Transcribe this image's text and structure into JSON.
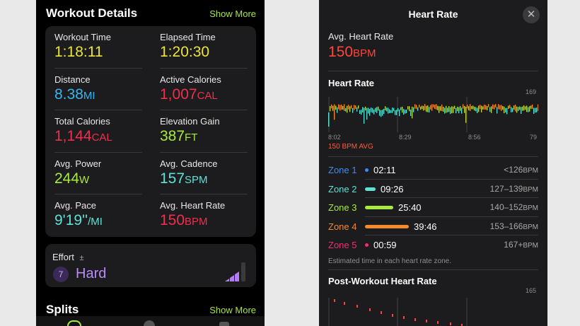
{
  "left": {
    "workout_title": "Workout Details",
    "show_more": "Show More",
    "metrics": [
      {
        "label": "Workout Time",
        "value": "1:18:11",
        "unit": "",
        "color": "#e9e43a"
      },
      {
        "label": "Elapsed Time",
        "value": "1:20:30",
        "unit": "",
        "color": "#e9e43a"
      },
      {
        "label": "Distance",
        "value": "8.38",
        "unit": "MI",
        "color": "#35b6f0"
      },
      {
        "label": "Active Calories",
        "value": "1,007",
        "unit": "CAL",
        "color": "#ef2f4f"
      },
      {
        "label": "Total Calories",
        "value": "1,144",
        "unit": "CAL",
        "color": "#ef2f4f"
      },
      {
        "label": "Elevation Gain",
        "value": "387",
        "unit": "FT",
        "color": "#a9eb3c"
      },
      {
        "label": "Avg. Power",
        "value": "244",
        "unit": "W",
        "color": "#a9eb3c"
      },
      {
        "label": "Avg. Cadence",
        "value": "157",
        "unit": "SPM",
        "color": "#5fe2d6"
      },
      {
        "label": "Avg. Pace",
        "value": "9'19''",
        "unit": "/MI",
        "color": "#5fe2d6"
      },
      {
        "label": "Avg. Heart Rate",
        "value": "150",
        "unit": "BPM",
        "color": "#ef2f4f"
      }
    ],
    "effort": {
      "label": "Effort",
      "plusminus": "±",
      "level": "7",
      "value": "Hard",
      "bars_filled": 3,
      "bars_total": 4
    },
    "splits_title": "Splits",
    "splits_more": "Show More"
  },
  "right": {
    "title": "Heart Rate",
    "close": "✕",
    "avg_label": "Avg. Heart Rate",
    "avg_value": "150",
    "avg_unit": "BPM",
    "chart_title": "Heart Rate",
    "chart_data": {
      "type": "bar",
      "x_ticks": [
        "8:02",
        "8:29",
        "8:56"
      ],
      "ylim": [
        79,
        169
      ],
      "avg_label": "150 BPM AVG",
      "min": 79,
      "max": 169
    },
    "zones": [
      {
        "name": "Zone 1",
        "time": "02:11",
        "range": "<126",
        "unit": "BPM",
        "color": "#3f8df0",
        "fraction": 0.06
      },
      {
        "name": "Zone 2",
        "time": "09:26",
        "range": "127–139",
        "unit": "BPM",
        "color": "#5fe2d6",
        "fraction": 0.24
      },
      {
        "name": "Zone 3",
        "time": "25:40",
        "range": "140–152",
        "unit": "BPM",
        "color": "#a9eb3c",
        "fraction": 0.65
      },
      {
        "name": "Zone 4",
        "time": "39:46",
        "range": "153–166",
        "unit": "BPM",
        "color": "#f58a2a",
        "fraction": 1.0
      },
      {
        "name": "Zone 5",
        "time": "00:59",
        "range": "167+",
        "unit": "BPM",
        "color": "#ef2f6f",
        "fraction": 0.02
      }
    ],
    "zone_note": "Estimated time in each heart rate zone.",
    "post_title": "Post-Workout Heart Rate",
    "post_max": "165"
  }
}
